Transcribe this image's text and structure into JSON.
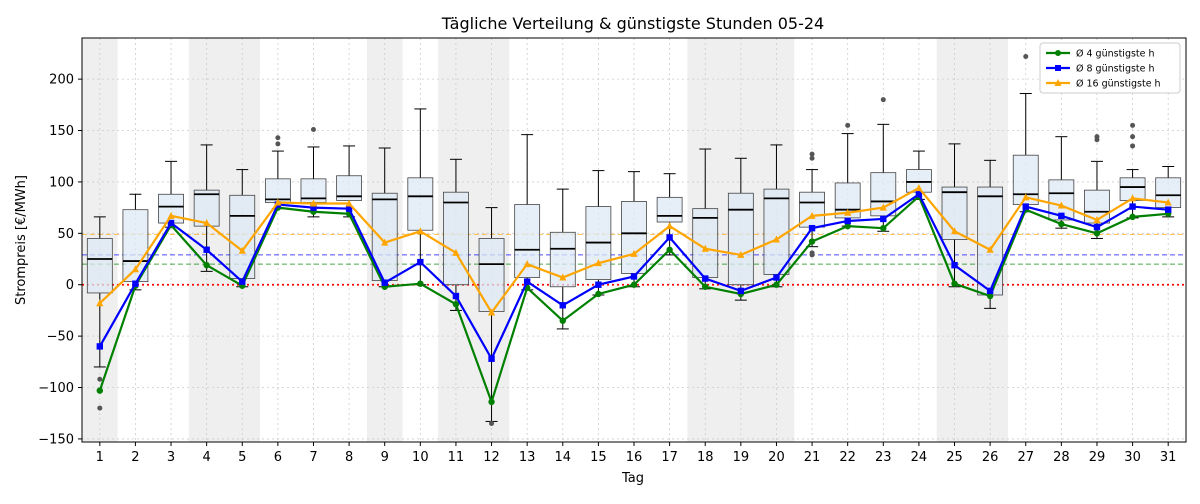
{
  "chart_data": {
    "type": "box",
    "title": "Tägliche Verteilung & günstigste Stunden 05-24",
    "xlabel": "Tag",
    "ylabel": "Strompreis [€/MWh]",
    "ylim": [
      -153,
      240
    ],
    "yticks": [
      -150,
      -100,
      -50,
      0,
      50,
      100,
      150,
      200
    ],
    "categories": [
      "1",
      "2",
      "3",
      "4",
      "5",
      "6",
      "7",
      "8",
      "9",
      "10",
      "11",
      "12",
      "13",
      "14",
      "15",
      "16",
      "17",
      "18",
      "19",
      "20",
      "21",
      "22",
      "23",
      "24",
      "25",
      "26",
      "27",
      "28",
      "29",
      "30",
      "31"
    ],
    "weekend_days": [
      1,
      4,
      5,
      9,
      11,
      12,
      18,
      19,
      20,
      25,
      26
    ],
    "box_color": "#dde9f5",
    "boxes": [
      {
        "day": 1,
        "q1": -8,
        "median": 25,
        "q3": 45,
        "whisker_low": -80,
        "whisker_high": 66,
        "outliers": [
          -92,
          -120
        ]
      },
      {
        "day": 2,
        "q1": 3,
        "median": 23,
        "q3": 73,
        "whisker_low": -5,
        "whisker_high": 88,
        "outliers": []
      },
      {
        "day": 3,
        "q1": 60,
        "median": 76,
        "q3": 88,
        "whisker_low": 56,
        "whisker_high": 120,
        "outliers": []
      },
      {
        "day": 4,
        "q1": 57,
        "median": 88,
        "q3": 92,
        "whisker_low": 13,
        "whisker_high": 136,
        "outliers": []
      },
      {
        "day": 5,
        "q1": 6,
        "median": 67,
        "q3": 87,
        "whisker_low": -2,
        "whisker_high": 112,
        "outliers": []
      },
      {
        "day": 6,
        "q1": 80,
        "median": 83,
        "q3": 103,
        "whisker_low": 74,
        "whisker_high": 130,
        "outliers": [
          137,
          143
        ]
      },
      {
        "day": 7,
        "q1": 80,
        "median": 84,
        "q3": 103,
        "whisker_low": 66,
        "whisker_high": 134,
        "outliers": [
          151
        ]
      },
      {
        "day": 8,
        "q1": 82,
        "median": 86,
        "q3": 106,
        "whisker_low": 66,
        "whisker_high": 135,
        "outliers": []
      },
      {
        "day": 9,
        "q1": 4,
        "median": 83,
        "q3": 89,
        "whisker_low": -2,
        "whisker_high": 133,
        "outliers": []
      },
      {
        "day": 10,
        "q1": 53,
        "median": 86,
        "q3": 104,
        "whisker_low": 0,
        "whisker_high": 171,
        "outliers": []
      },
      {
        "day": 11,
        "q1": 0,
        "median": 80,
        "q3": 90,
        "whisker_low": -25,
        "whisker_high": 122,
        "outliers": []
      },
      {
        "day": 12,
        "q1": -26,
        "median": 20,
        "q3": 45,
        "whisker_low": -133,
        "whisker_high": 75,
        "outliers": [
          -135
        ]
      },
      {
        "day": 13,
        "q1": 7,
        "median": 34,
        "q3": 78,
        "whisker_low": -5,
        "whisker_high": 146,
        "outliers": []
      },
      {
        "day": 14,
        "q1": -2,
        "median": 35,
        "q3": 51,
        "whisker_low": -43,
        "whisker_high": 93,
        "outliers": []
      },
      {
        "day": 15,
        "q1": 5,
        "median": 41,
        "q3": 76,
        "whisker_low": -10,
        "whisker_high": 111,
        "outliers": []
      },
      {
        "day": 16,
        "q1": 11,
        "median": 50,
        "q3": 81,
        "whisker_low": -2,
        "whisker_high": 110,
        "outliers": []
      },
      {
        "day": 17,
        "q1": 61,
        "median": 67,
        "q3": 85,
        "whisker_low": 29,
        "whisker_high": 108,
        "outliers": []
      },
      {
        "day": 18,
        "q1": 7,
        "median": 65,
        "q3": 74,
        "whisker_low": -4,
        "whisker_high": 132,
        "outliers": []
      },
      {
        "day": 19,
        "q1": 0,
        "median": 73,
        "q3": 89,
        "whisker_low": -15,
        "whisker_high": 123,
        "outliers": []
      },
      {
        "day": 20,
        "q1": 10,
        "median": 84,
        "q3": 93,
        "whisker_low": -2,
        "whisker_high": 136,
        "outliers": []
      },
      {
        "day": 21,
        "q1": 56,
        "median": 80,
        "q3": 90,
        "whisker_low": 37,
        "whisker_high": 112,
        "outliers": [
          123,
          127,
          29,
          31
        ]
      },
      {
        "day": 22,
        "q1": 65,
        "median": 73,
        "q3": 99,
        "whisker_low": 57,
        "whisker_high": 147,
        "outliers": [
          155
        ]
      },
      {
        "day": 23,
        "q1": 67,
        "median": 81,
        "q3": 109,
        "whisker_low": 52,
        "whisker_high": 156,
        "outliers": [
          180
        ]
      },
      {
        "day": 24,
        "q1": 90,
        "median": 100,
        "q3": 112,
        "whisker_low": 83,
        "whisker_high": 130,
        "outliers": []
      },
      {
        "day": 25,
        "q1": 44,
        "median": 90,
        "q3": 95,
        "whisker_low": -2,
        "whisker_high": 137,
        "outliers": []
      },
      {
        "day": 26,
        "q1": -10,
        "median": 86,
        "q3": 95,
        "whisker_low": -23,
        "whisker_high": 121,
        "outliers": []
      },
      {
        "day": 27,
        "q1": 78,
        "median": 88,
        "q3": 126,
        "whisker_low": 71,
        "whisker_high": 186,
        "outliers": [
          222
        ]
      },
      {
        "day": 28,
        "q1": 63,
        "median": 89,
        "q3": 102,
        "whisker_low": 55,
        "whisker_high": 144,
        "outliers": []
      },
      {
        "day": 29,
        "q1": 60,
        "median": 71,
        "q3": 92,
        "whisker_low": 45,
        "whisker_high": 120,
        "outliers": [
          141,
          144
        ]
      },
      {
        "day": 30,
        "q1": 82,
        "median": 95,
        "q3": 104,
        "whisker_low": 65,
        "whisker_high": 112,
        "outliers": [
          135,
          144,
          155
        ]
      },
      {
        "day": 31,
        "q1": 75,
        "median": 87,
        "q3": 104,
        "whisker_low": 66,
        "whisker_high": 115,
        "outliers": []
      }
    ],
    "series": [
      {
        "name": "Ø 4 günstigste h",
        "color": "#008000",
        "marker": "circle",
        "values": [
          -103,
          -1,
          58,
          19,
          -1,
          75,
          71,
          69,
          -2,
          1,
          -19,
          -114,
          -3,
          -35,
          -9,
          0,
          34,
          -2,
          -9,
          0,
          42,
          57,
          55,
          86,
          1,
          -11,
          73,
          59,
          50,
          66,
          69
        ]
      },
      {
        "name": "Ø 8 günstigste h",
        "color": "#0000ff",
        "marker": "square",
        "values": [
          -60,
          1,
          60,
          34,
          3,
          78,
          75,
          74,
          2,
          22,
          -11,
          -72,
          3,
          -20,
          0,
          8,
          46,
          6,
          -6,
          7,
          55,
          62,
          64,
          88,
          19,
          -6,
          76,
          67,
          56,
          76,
          73
        ]
      },
      {
        "name": "Ø 16 günstigste h",
        "color": "#ffa500",
        "marker": "triangle",
        "values": [
          -18,
          15,
          67,
          60,
          33,
          80,
          79,
          79,
          41,
          52,
          31,
          -27,
          20,
          7,
          21,
          30,
          57,
          35,
          29,
          44,
          67,
          70,
          75,
          94,
          52,
          34,
          85,
          77,
          63,
          84,
          80
        ]
      }
    ],
    "reference_lines": [
      {
        "value": 0,
        "color": "#ff0000",
        "style": "dotted"
      },
      {
        "value": 49,
        "color": "#ffa500",
        "style": "dashed"
      },
      {
        "value": 29,
        "color": "#0000ff",
        "style": "dashed"
      },
      {
        "value": 20,
        "color": "#008000",
        "style": "dashed"
      }
    ],
    "grid": true,
    "legend_position": "top-right"
  }
}
